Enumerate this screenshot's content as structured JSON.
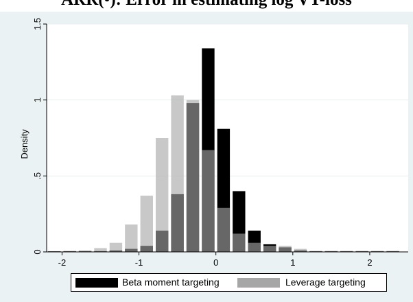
{
  "chart_data": {
    "type": "bar",
    "title": "ARR(•): Error in estimating log VT-loss",
    "xlabel": "",
    "ylabel": "Density",
    "xlim": [
      -2.2,
      2.5
    ],
    "ylim": [
      0,
      1.5
    ],
    "x_ticks": [
      "-2",
      "-1",
      "0",
      "1",
      "2"
    ],
    "y_ticks": [
      "0",
      ".5",
      "1",
      "1.5"
    ],
    "grid": "horizontal",
    "legend_position": "bottom",
    "bin_width": 0.2,
    "series": [
      {
        "name": "Beta moment targeting",
        "color": "#000000",
        "x": [
          -2.1,
          -1.9,
          -1.7,
          -1.5,
          -1.3,
          -1.1,
          -0.9,
          -0.7,
          -0.5,
          -0.3,
          -0.1,
          0.1,
          0.3,
          0.5,
          0.7,
          0.9,
          1.1,
          1.3,
          1.5,
          1.7,
          1.9,
          2.1,
          2.3
        ],
        "values": [
          0,
          0.005,
          0.005,
          0.005,
          0.01,
          0.02,
          0.04,
          0.14,
          0.38,
          0.98,
          1.34,
          0.81,
          0.4,
          0.14,
          0.05,
          0.03,
          0.01,
          0.005,
          0.005,
          0.005,
          0.005,
          0.005,
          0.005
        ]
      },
      {
        "name": "Leverage targeting",
        "color": "#a6a6a6",
        "x": [
          -2.1,
          -1.9,
          -1.7,
          -1.5,
          -1.3,
          -1.1,
          -0.9,
          -0.7,
          -0.5,
          -0.3,
          -0.1,
          0.1,
          0.3,
          0.5,
          0.7,
          0.9,
          1.1,
          1.3,
          1.5,
          1.7,
          1.9,
          2.1,
          2.3
        ],
        "values": [
          0.005,
          0.005,
          0.01,
          0.025,
          0.06,
          0.18,
          0.37,
          0.75,
          1.03,
          1.0,
          0.67,
          0.29,
          0.12,
          0.06,
          0.04,
          0.04,
          0.02,
          0.005,
          0.005,
          0.005,
          0.005,
          0.005,
          0.005
        ]
      }
    ]
  }
}
